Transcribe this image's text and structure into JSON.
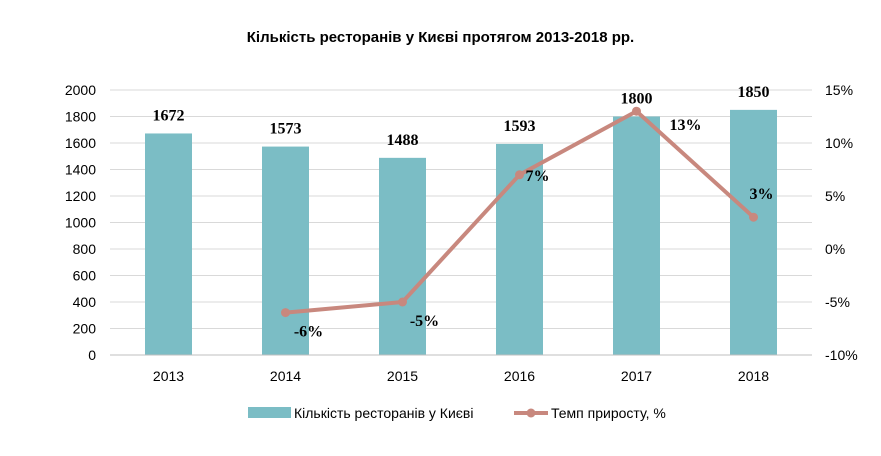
{
  "chart_data": {
    "type": "bar",
    "title": "Кількість ресторанів у Києві протягом 2013-2018 рр.",
    "categories": [
      "2013",
      "2014",
      "2015",
      "2016",
      "2017",
      "2018"
    ],
    "series": [
      {
        "name": "Кількість ресторанів у Києві",
        "type": "bar",
        "axis": "left",
        "color": "#7bbdc5",
        "values": [
          1672,
          1573,
          1488,
          1593,
          1800,
          1850
        ],
        "labels": [
          "1672",
          "1573",
          "1488",
          "1593",
          "1800",
          "1850"
        ]
      },
      {
        "name": "Темп приросту, %",
        "type": "line",
        "axis": "right",
        "color": "#c8887e",
        "values": [
          null,
          -6,
          -5,
          7,
          13,
          3
        ],
        "labels": [
          "",
          "-6%",
          "-5%",
          "7%",
          "13%",
          "3%"
        ]
      }
    ],
    "ylim": [
      0,
      2000
    ],
    "yticks": [
      "0",
      "200",
      "400",
      "600",
      "800",
      "1000",
      "1200",
      "1400",
      "1600",
      "1800",
      "2000"
    ],
    "y2lim": [
      -10,
      15
    ],
    "y2ticks": [
      "-10%",
      "-5%",
      "0%",
      "5%",
      "10%",
      "15%"
    ],
    "grid": true,
    "legend_position": "bottom"
  }
}
